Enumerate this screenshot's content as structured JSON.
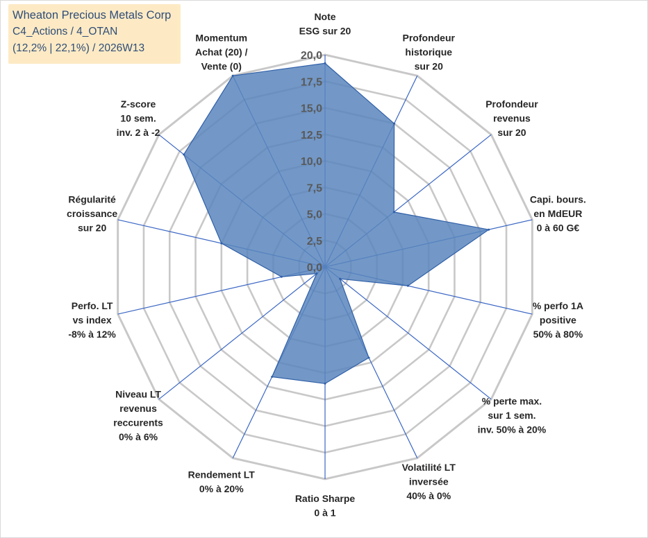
{
  "info_box": {
    "title": "Wheaton Precious Metals Corp",
    "line2": "C4_Actions / 4_OTAN",
    "line3": "(12,2% | 22,1%) / 2026W13"
  },
  "colors": {
    "fill": "#5b86bd",
    "line": "#2f5fa8",
    "grid": "#c8c8c8",
    "spoke": "#3a66c4"
  },
  "chart_data": {
    "type": "radar",
    "rmin": 0,
    "rmax": 20,
    "ticks": [
      "0,0",
      "2,5",
      "5,0",
      "7,5",
      "10,0",
      "12,5",
      "15,0",
      "17,5",
      "20,0"
    ],
    "tick_values": [
      0,
      2.5,
      5,
      7.5,
      10,
      12.5,
      15,
      17.5,
      20
    ],
    "axes": [
      {
        "label": [
          "Note",
          "ESG sur 20"
        ],
        "value": 19.2
      },
      {
        "label": [
          "Profondeur",
          "historique",
          "sur 20"
        ],
        "value": 15.0
      },
      {
        "label": [
          "Profondeur",
          "revenus",
          "sur 20"
        ],
        "value": 8.3
      },
      {
        "label": [
          "Capi. bours.",
          "en MdEUR",
          "0 à 60 G€"
        ],
        "value": 15.8
      },
      {
        "label": [
          "% perfo 1A",
          "positive",
          "50% à 80%"
        ],
        "value": 8.0
      },
      {
        "label": [
          "% perte max.",
          "sur 1 sem.",
          "inv. 50% à 20%"
        ],
        "value": 1.8
      },
      {
        "label": [
          "Volatilité LT",
          "inversée",
          "40% à 0%"
        ],
        "value": 9.5
      },
      {
        "label": [
          "Ratio Sharpe",
          "0 à 1"
        ],
        "value": 11.0
      },
      {
        "label": [
          "Rendement LT",
          "0% à 20%"
        ],
        "value": 11.5
      },
      {
        "label": [
          "Niveau LT",
          "revenus",
          "reccurents",
          "0% à 6%"
        ],
        "value": 1.0
      },
      {
        "label": [
          "Perfo. LT",
          "vs index",
          "-8% à 12%"
        ],
        "value": 4.2
      },
      {
        "label": [
          "Régularité",
          "croissance",
          "sur 20"
        ],
        "value": 10.0
      },
      {
        "label": [
          "Z-score",
          "10 sem.",
          "inv. 2 à -2"
        ],
        "value": 17.0
      },
      {
        "label": [
          "Momentum",
          "Achat (20) /",
          "Vente (0)"
        ],
        "value": 20.0
      }
    ]
  }
}
